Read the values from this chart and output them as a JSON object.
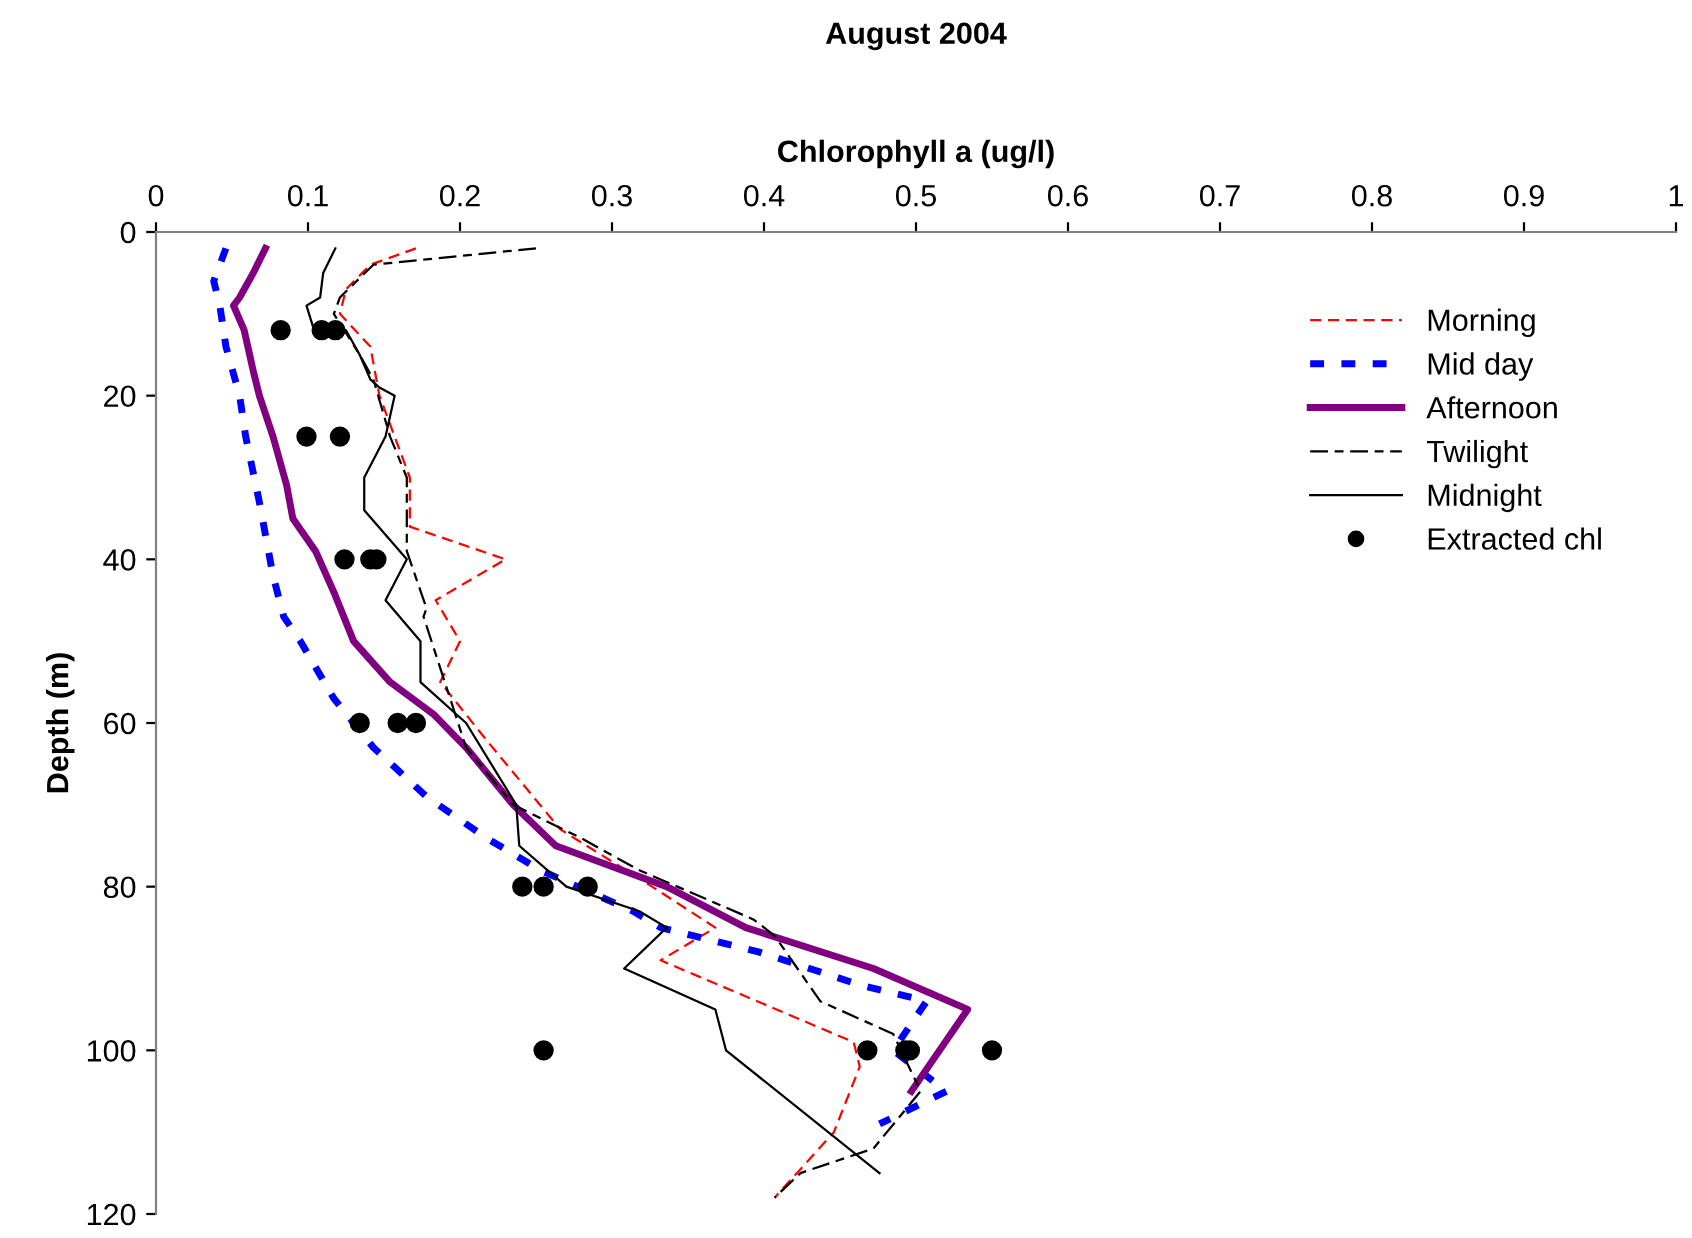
{
  "chart_data": {
    "type": "line",
    "title": "August 2004",
    "xlabel": "Chlorophyll a (ug/l)",
    "ylabel": "Depth (m)",
    "xlim": [
      0,
      1
    ],
    "xticks": [
      0,
      0.1,
      0.2,
      0.3,
      0.4,
      0.5,
      0.6,
      0.7,
      0.8,
      0.9,
      1
    ],
    "ylim": [
      120,
      0
    ],
    "yticks": [
      0,
      20,
      40,
      60,
      80,
      100,
      120
    ],
    "grid": false,
    "legend": "top right",
    "series": [
      {
        "name": "Morning",
        "color": "#ff0000",
        "line_style": "dashed",
        "x": [
          0.171,
          0.141,
          0.125,
          0.121,
          0.141,
          0.147,
          0.157,
          0.167,
          0.167,
          0.23,
          0.184,
          0.2,
          0.187,
          0.217,
          0.266,
          0.318,
          0.368,
          0.332,
          0.459,
          0.463,
          0.446,
          0.407
        ],
        "values": [
          2,
          4,
          7,
          10,
          14,
          20,
          25,
          30,
          36,
          40,
          45,
          50,
          55,
          62,
          73,
          79,
          85,
          89,
          99,
          102,
          110,
          118
        ]
      },
      {
        "name": "Mid day",
        "color": "#0000ff",
        "line_style": "dotted",
        "x": [
          0.046,
          0.038,
          0.042,
          0.046,
          0.055,
          0.059,
          0.068,
          0.077,
          0.084,
          0.095,
          0.117,
          0.143,
          0.178,
          0.217,
          0.253,
          0.314,
          0.332,
          0.397,
          0.463,
          0.507,
          0.485,
          0.52,
          0.476
        ],
        "values": [
          2,
          6,
          9,
          14,
          20,
          25,
          33,
          42,
          47,
          50,
          57,
          63,
          69,
          74,
          78,
          83,
          85,
          88,
          92,
          94,
          100,
          105,
          109
        ]
      },
      {
        "name": "Afternoon",
        "color": "#800080",
        "line_style": "solid",
        "x": [
          0.072,
          0.064,
          0.055,
          0.051,
          0.058,
          0.064,
          0.068,
          0.077,
          0.086,
          0.09,
          0.105,
          0.117,
          0.13,
          0.154,
          0.183,
          0.204,
          0.235,
          0.263,
          0.336,
          0.388,
          0.472,
          0.534,
          0.497
        ],
        "values": [
          2,
          5,
          8,
          9,
          12,
          17,
          20,
          25,
          31,
          35,
          39,
          44,
          50,
          55,
          59,
          63,
          70,
          75,
          80,
          85,
          90,
          95,
          105
        ]
      },
      {
        "name": "Twilight",
        "color": "#000000",
        "line_style": "dashed",
        "x": [
          0.25,
          0.143,
          0.121,
          0.117,
          0.134,
          0.143,
          0.154,
          0.165,
          0.165,
          0.178,
          0.176,
          0.204,
          0.235,
          0.279,
          0.318,
          0.393,
          0.407,
          0.437,
          0.485,
          0.503,
          0.472,
          0.424,
          0.407
        ],
        "values": [
          2,
          4,
          8,
          10,
          15,
          18,
          25,
          30,
          39,
          46,
          47,
          63,
          70,
          74,
          78,
          84,
          86,
          94,
          98,
          105,
          112,
          115,
          118
        ]
      },
      {
        "name": "Midnight",
        "color": "#000000",
        "line_style": "solid",
        "x": [
          0.118,
          0.11,
          0.108,
          0.099,
          0.104,
          0.125,
          0.134,
          0.141,
          0.147,
          0.157,
          0.151,
          0.137,
          0.137,
          0.165,
          0.151,
          0.174,
          0.174,
          0.204,
          0.237,
          0.239,
          0.27,
          0.318,
          0.336,
          0.308,
          0.368,
          0.375,
          0.476
        ],
        "values": [
          2,
          5,
          8,
          9,
          12,
          12,
          15,
          18,
          19,
          20,
          25,
          30,
          34,
          40,
          45,
          50,
          55,
          60,
          70,
          75,
          80,
          83,
          85,
          90,
          95,
          100,
          115
        ]
      },
      {
        "name": "Extracted chl",
        "type": "scatter",
        "marker": "circle",
        "color": "#000000",
        "x": [
          0.082,
          0.109,
          0.118,
          0.099,
          0.121,
          0.124,
          0.141,
          0.145,
          0.134,
          0.159,
          0.171,
          0.241,
          0.255,
          0.284,
          0.255,
          0.468,
          0.493,
          0.496,
          0.55
        ],
        "values": [
          12,
          12,
          12,
          25,
          25,
          40,
          40,
          40,
          60,
          60,
          60,
          80,
          80,
          80,
          100,
          100,
          100,
          100,
          100
        ]
      }
    ]
  }
}
